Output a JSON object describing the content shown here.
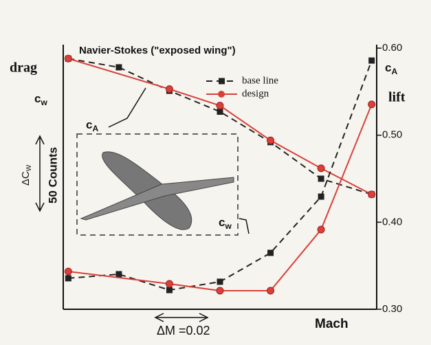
{
  "chart_data": {
    "type": "line",
    "title": "Navier-Stokes (\"exposed wing\")",
    "y_label": "drag",
    "y2_label": "lift",
    "x_label": "Mach",
    "annotations": {
      "cw_left": {
        "text": "c",
        "sub": "w"
      },
      "ca_curve": {
        "text": "c",
        "sub": "A"
      },
      "cw_curve": {
        "text": "c",
        "sub": "w"
      },
      "ca_right": {
        "text": "c",
        "sub": "A"
      },
      "delta_cw": {
        "text": "ΔC",
        "sub": "W"
      },
      "counts": "50 Counts",
      "delta_m": "ΔM =0.02"
    },
    "xlim": [
      0.698,
      0.822
    ],
    "ylim": [
      0,
      175
    ],
    "y2lim": [
      0.3,
      0.604
    ],
    "y2ticks": [
      {
        "value": 0.6,
        "label": "0.60"
      },
      {
        "value": 0.5,
        "label": "0.50"
      },
      {
        "value": 0.4,
        "label": "0.40"
      },
      {
        "value": 0.3,
        "label": "0.30"
      }
    ],
    "series": [
      {
        "name": "base line",
        "color": "#222222",
        "dash": true,
        "marker": "square",
        "axis": "y2",
        "x": [
          0.7,
          0.72,
          0.74,
          0.76,
          0.78,
          0.8,
          0.82
        ],
        "values": [
          0.588,
          0.578,
          0.551,
          0.527,
          0.492,
          0.45,
          0.432
        ]
      },
      {
        "name": "design",
        "color": "#d9403a",
        "dash": false,
        "marker": "circle",
        "axis": "y2",
        "x": [
          0.7,
          0.74,
          0.76,
          0.78,
          0.8,
          0.82
        ],
        "values": [
          0.588,
          0.553,
          0.534,
          0.494,
          0.462,
          0.432
        ]
      },
      {
        "color": "#222222",
        "dash": true,
        "marker": "square",
        "x": [
          0.7,
          0.72,
          0.74,
          0.76,
          0.78,
          0.8,
          0.82
        ],
        "values": [
          20.5,
          23.2,
          12.7,
          18.2,
          37.3,
          74.5,
          164.5
        ]
      },
      {
        "color": "#d9403a",
        "dash": false,
        "marker": "circle",
        "x": [
          0.7,
          0.74,
          0.76,
          0.78,
          0.8,
          0.82
        ],
        "values": [
          25,
          16.8,
          12.3,
          12.3,
          52.7,
          135.5
        ]
      }
    ]
  }
}
